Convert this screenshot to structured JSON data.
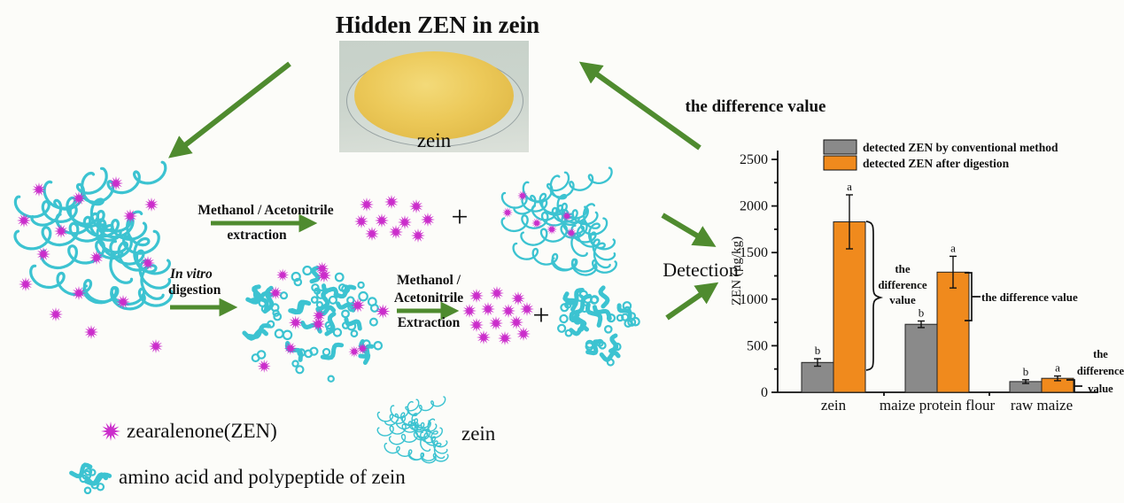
{
  "title": "Hidden ZEN in zein",
  "photo": {
    "caption": "zein"
  },
  "flow": {
    "extraction1": [
      "Methanol / Acetonitrile",
      "extraction"
    ],
    "digestion": [
      "In vitro",
      "digestion"
    ],
    "extraction2": [
      "Methanol /",
      "Acetonitrile",
      "Extraction"
    ],
    "plus": "+",
    "detection": "Detection",
    "difference_value": "the difference value"
  },
  "legend": {
    "items": [
      {
        "icon": "zen-star-icon",
        "label": "zearalenone(ZEN)"
      },
      {
        "icon": "zein-tangle-icon",
        "label": "zein"
      },
      {
        "icon": "amino-acid-icon",
        "label": "amino acid and polypeptide of zein"
      }
    ]
  },
  "chart_data": {
    "type": "bar",
    "title": "",
    "xlabel": "",
    "ylabel": "ZEN (µg/kg)",
    "ylim": [
      0,
      2500
    ],
    "yticks": [
      0,
      500,
      1000,
      1500,
      2000,
      2500
    ],
    "categories": [
      "zein",
      "maize protein flour",
      "raw maize"
    ],
    "series": [
      {
        "name": "detected ZEN by conventional method",
        "color": "#8a8a8a",
        "values": [
          320,
          730,
          115
        ],
        "errors": [
          40,
          35,
          20
        ],
        "sig_letters": [
          "b",
          "b",
          "b"
        ]
      },
      {
        "name": "detected ZEN after digestion",
        "color": "#f08a1d",
        "values": [
          1830,
          1290,
          150
        ],
        "errors": [
          290,
          170,
          25
        ],
        "sig_letters": [
          "a",
          "a",
          "a"
        ]
      }
    ],
    "annotations": [
      "the difference value",
      "the difference value",
      "the difference value"
    ],
    "legend_position": "top",
    "grid": false
  }
}
